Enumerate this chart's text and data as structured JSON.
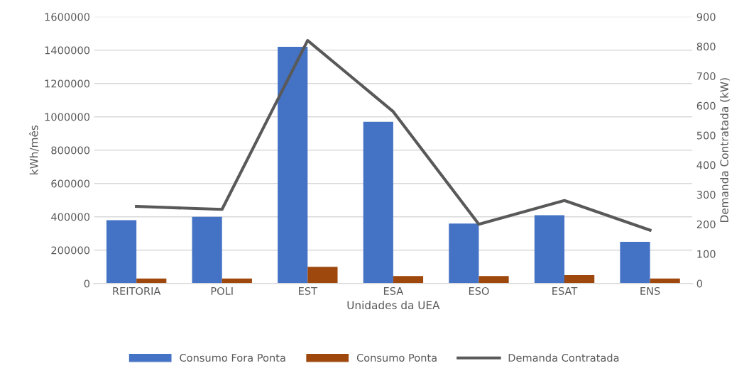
{
  "chart_data": {
    "type": "bar",
    "categories": [
      "REITORIA",
      "POLI",
      "EST",
      "ESA",
      "ESO",
      "ESAT",
      "ENS"
    ],
    "xlabel": "Unidades da UEA",
    "ylabel": "kWh/mês",
    "y2label": "Demanda Contratada (kW)",
    "series": [
      {
        "name": "Consumo Fora Ponta",
        "color": "#4472c4",
        "values": [
          380000,
          400000,
          1420000,
          970000,
          360000,
          410000,
          250000
        ]
      },
      {
        "name": "Consumo Ponta",
        "color": "#9e480e",
        "values": [
          30000,
          30000,
          100000,
          45000,
          45000,
          50000,
          30000
        ]
      },
      {
        "name": "Demanda Contratada",
        "type": "line",
        "axis": "y2",
        "color": "#595959",
        "values": [
          260,
          250,
          820,
          580,
          200,
          280,
          180
        ]
      }
    ],
    "ylim": [
      0,
      1600000
    ],
    "yticks": [
      0,
      200000,
      400000,
      600000,
      800000,
      1000000,
      1200000,
      1400000,
      1600000
    ],
    "y2lim": [
      0,
      900
    ],
    "y2ticks": [
      0,
      100,
      200,
      300,
      400,
      500,
      600,
      700,
      800,
      900
    ],
    "grid": "y",
    "legend": "bottom",
    "marker": "none",
    "line_style": "solid"
  }
}
